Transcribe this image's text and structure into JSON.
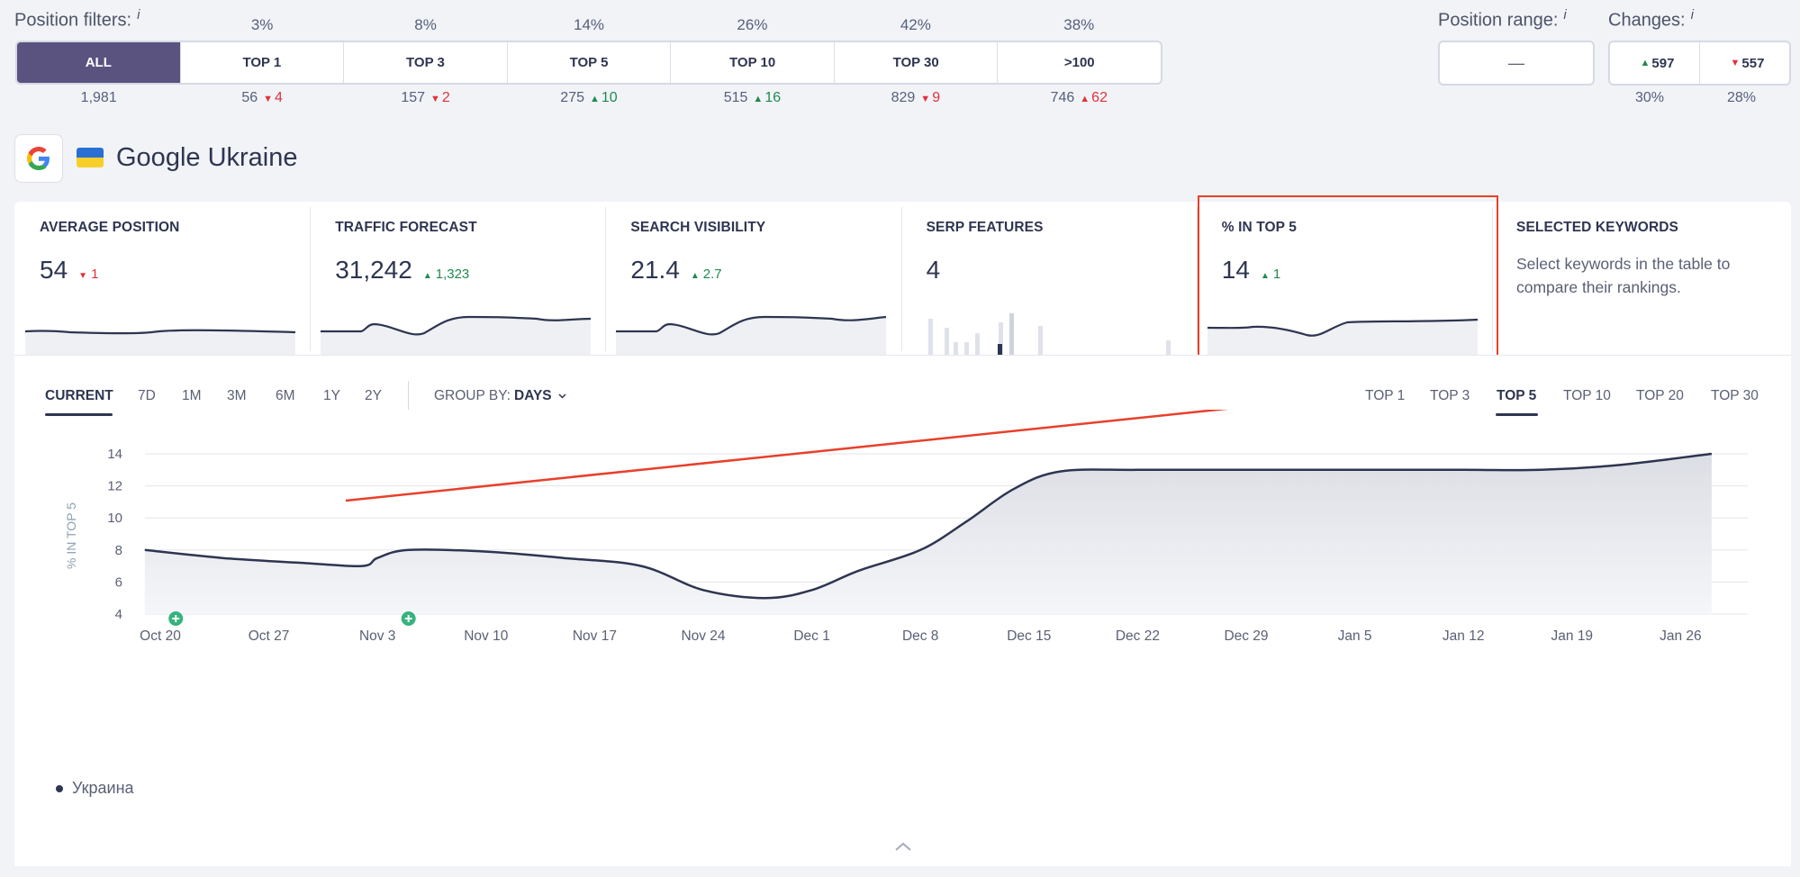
{
  "position_filters": {
    "title": "Position filters:",
    "info": "i",
    "buttons": [
      {
        "label": "ALL",
        "pct": "",
        "count": "1,981",
        "delta": "",
        "dir": ""
      },
      {
        "label": "TOP 1",
        "pct": "3%",
        "count": "56",
        "delta": "4",
        "dir": "down"
      },
      {
        "label": "TOP 3",
        "pct": "8%",
        "count": "157",
        "delta": "2",
        "dir": "down"
      },
      {
        "label": "TOP 5",
        "pct": "14%",
        "count": "275",
        "delta": "10",
        "dir": "up"
      },
      {
        "label": "TOP 10",
        "pct": "26%",
        "count": "515",
        "delta": "16",
        "dir": "up"
      },
      {
        "label": "TOP 30",
        "pct": "42%",
        "count": "829",
        "delta": "9",
        "dir": "down"
      },
      {
        "label": ">100",
        "pct": "38%",
        "count": "746",
        "delta": "62",
        "dir": "up-red"
      }
    ],
    "active": "ALL"
  },
  "position_range": {
    "title": "Position range:",
    "info": "i",
    "value": "—"
  },
  "changes": {
    "title": "Changes:",
    "info": "i",
    "up_value": "597",
    "down_value": "557",
    "up_pct": "30%",
    "down_pct": "28%"
  },
  "engine": {
    "title": "Google Ukraine",
    "icon": "google-g-icon",
    "flag": "ukraine-flag-icon"
  },
  "cards": [
    {
      "title": "AVERAGE POSITION",
      "value": "54",
      "delta": "1",
      "dir": "down"
    },
    {
      "title": "TRAFFIC FORECAST",
      "value": "31,242",
      "delta": "1,323",
      "dir": "up"
    },
    {
      "title": "SEARCH VISIBILITY",
      "value": "21.4",
      "delta": "2.7",
      "dir": "up"
    },
    {
      "title": "SERP FEATURES",
      "value": "4",
      "delta": "",
      "dir": ""
    },
    {
      "title": "% IN TOP 5",
      "value": "14",
      "delta": "1",
      "dir": "up"
    }
  ],
  "selected_keywords": {
    "title": "SELECTED KEYWORDS",
    "description": "Select keywords in the table to compare their rankings."
  },
  "toolbar": {
    "periods": [
      "CURRENT",
      "7D",
      "1M",
      "3M",
      "6M",
      "1Y",
      "2Y"
    ],
    "active_period": "CURRENT",
    "group_by_label": "GROUP BY:",
    "group_by_value": "DAYS",
    "top_tabs": [
      "TOP 1",
      "TOP 3",
      "TOP 5",
      "TOP 10",
      "TOP 20",
      "TOP 30"
    ],
    "active_top": "TOP 5"
  },
  "chart_data": {
    "type": "area",
    "ylabel": "% IN TOP 5",
    "ylim": [
      4,
      14
    ],
    "yticks": [
      4,
      6,
      8,
      10,
      12,
      14
    ],
    "x_ticks": [
      "Oct 20",
      "Oct 27",
      "Nov 3",
      "Nov 10",
      "Nov 17",
      "Nov 24",
      "Dec 1",
      "Dec 8",
      "Dec 15",
      "Dec 22",
      "Dec 29",
      "Jan 5",
      "Jan 12",
      "Jan 19",
      "Jan 26"
    ],
    "series": [
      {
        "name": "Украина",
        "x": [
          "Oct 19",
          "Oct 24",
          "Oct 29",
          "Nov 2",
          "Nov 3",
          "Nov 5",
          "Nov 10",
          "Nov 15",
          "Nov 20",
          "Nov 24",
          "Nov 28",
          "Dec 1",
          "Dec 4",
          "Dec 8",
          "Dec 11",
          "Dec 14",
          "Dec 17",
          "Dec 22",
          "Dec 29",
          "Jan 5",
          "Jan 12",
          "Jan 17",
          "Jan 22",
          "Jan 28"
        ],
        "values": [
          8.0,
          7.5,
          7.2,
          7.0,
          7.5,
          8.0,
          7.9,
          7.5,
          7.0,
          5.5,
          5.0,
          5.5,
          6.7,
          8.0,
          9.8,
          11.8,
          12.9,
          13.0,
          13.0,
          13.0,
          13.0,
          13.0,
          13.3,
          14.0
        ]
      }
    ],
    "events": [
      "Oct 21",
      "Nov 5"
    ],
    "grid": true
  },
  "legend": {
    "label": "Украина"
  }
}
